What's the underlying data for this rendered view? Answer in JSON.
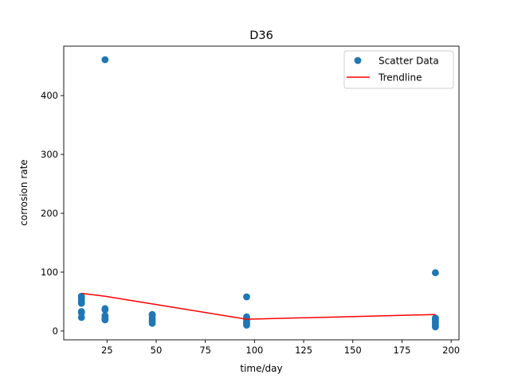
{
  "chart_data": {
    "type": "scatter",
    "title": "D36",
    "xlabel": "time/day",
    "ylabel": "corrosion rate",
    "xlim": [
      3.0,
      204.0
    ],
    "ylim": [
      -15,
      484
    ],
    "xticks": [
      25,
      50,
      75,
      100,
      125,
      150,
      175,
      200
    ],
    "yticks": [
      0,
      100,
      200,
      300,
      400
    ],
    "grid": false,
    "legend_position": "top-right",
    "series": [
      {
        "name": "Scatter Data",
        "kind": "scatter",
        "color": "#1f77b4",
        "points": [
          [
            12,
            59
          ],
          [
            12,
            55
          ],
          [
            12,
            50
          ],
          [
            12,
            47
          ],
          [
            12,
            33
          ],
          [
            12,
            31
          ],
          [
            12,
            23
          ],
          [
            24,
            461
          ],
          [
            24,
            38
          ],
          [
            24,
            36
          ],
          [
            24,
            26
          ],
          [
            24,
            22
          ],
          [
            24,
            19
          ],
          [
            48,
            28
          ],
          [
            48,
            26
          ],
          [
            48,
            21
          ],
          [
            48,
            17
          ],
          [
            48,
            13
          ],
          [
            96,
            58
          ],
          [
            96,
            24
          ],
          [
            96,
            20
          ],
          [
            96,
            16
          ],
          [
            96,
            13
          ],
          [
            96,
            10
          ],
          [
            192,
            99
          ],
          [
            192,
            22
          ],
          [
            192,
            20
          ],
          [
            192,
            17
          ],
          [
            192,
            14
          ],
          [
            192,
            10
          ],
          [
            192,
            7
          ]
        ]
      },
      {
        "name": "Trendline",
        "kind": "line",
        "color": "#ff0000",
        "points": [
          [
            12,
            64
          ],
          [
            24,
            59
          ],
          [
            48,
            46
          ],
          [
            96,
            20
          ],
          [
            192,
            28
          ]
        ]
      }
    ]
  }
}
